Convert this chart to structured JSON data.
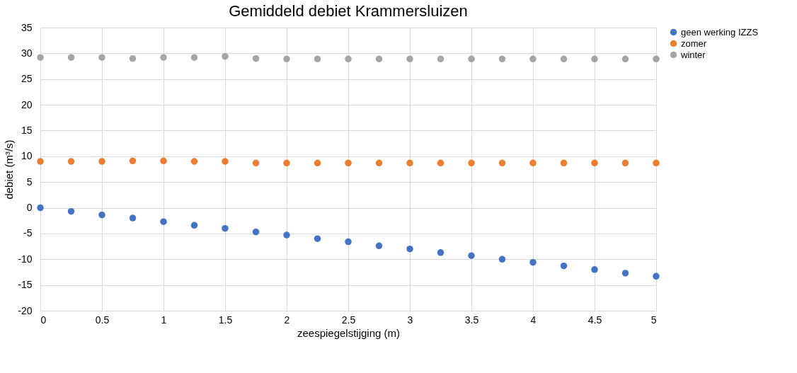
{
  "chart_data": {
    "type": "scatter",
    "title": "Gemiddeld debiet Krammersluizen",
    "xlabel": "zeespiegelstijging (m)",
    "ylabel": "debiet (m³/s)",
    "x": [
      0,
      0.25,
      0.5,
      0.75,
      1,
      1.25,
      1.5,
      1.75,
      2,
      2.25,
      2.5,
      2.75,
      3,
      3.25,
      3.5,
      3.75,
      4,
      4.25,
      4.5,
      4.75,
      5
    ],
    "series": [
      {
        "name": "geen werking IZZS",
        "color": "#4472c4",
        "values": [
          0,
          -0.7,
          -1.4,
          -2.0,
          -2.7,
          -3.4,
          -4.0,
          -4.7,
          -5.3,
          -6.0,
          -6.6,
          -7.4,
          -8.0,
          -8.7,
          -9.3,
          -10.0,
          -10.6,
          -11.3,
          -12.0,
          -12.7,
          -13.3
        ]
      },
      {
        "name": "zomer",
        "color": "#ed7d31",
        "values": [
          9.0,
          9.0,
          9.0,
          9.1,
          9.1,
          9.0,
          9.0,
          8.7,
          8.7,
          8.7,
          8.7,
          8.7,
          8.7,
          8.7,
          8.7,
          8.7,
          8.7,
          8.7,
          8.7,
          8.7,
          8.7
        ]
      },
      {
        "name": "winter",
        "color": "#a5a5a5",
        "values": [
          29.2,
          29.2,
          29.2,
          29.0,
          29.2,
          29.2,
          29.4,
          29.0,
          28.9,
          28.9,
          28.9,
          28.9,
          28.9,
          28.9,
          28.9,
          28.9,
          28.9,
          28.9,
          28.9,
          28.9,
          28.9
        ]
      }
    ],
    "xlim": [
      0,
      5
    ],
    "xticks": [
      0,
      0.5,
      1,
      1.5,
      2,
      2.5,
      3,
      3.5,
      4,
      4.5,
      5
    ],
    "ylim": [
      -20,
      35
    ],
    "yticks": [
      -20,
      -15,
      -10,
      -5,
      0,
      5,
      10,
      15,
      20,
      25,
      30,
      35
    ],
    "grid": true,
    "legend": "right",
    "marker": "circle"
  }
}
